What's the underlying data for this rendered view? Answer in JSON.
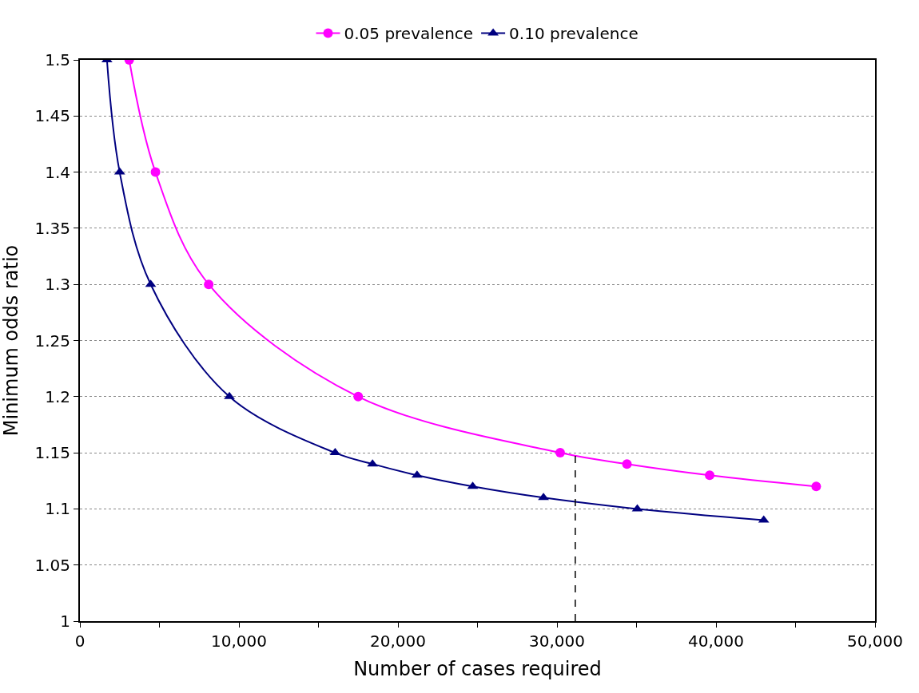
{
  "chart_data": {
    "type": "line",
    "xlabel": "Number of cases required",
    "ylabel": "Minimum odds ratio",
    "series": [
      {
        "name": "0.05 prevalence",
        "color": "#ff00ff",
        "marker": "circle",
        "x": [
          3100,
          4750,
          8100,
          17500,
          30200,
          34400,
          39600,
          46300
        ],
        "values": [
          1.5,
          1.4,
          1.3,
          1.2,
          1.15,
          1.14,
          1.13,
          1.12
        ]
      },
      {
        "name": "0.10 prevalence",
        "color": "#000080",
        "marker": "triangle",
        "x": [
          1700,
          2500,
          4450,
          9400,
          16050,
          18400,
          21200,
          24700,
          29150,
          35050,
          43000
        ],
        "values": [
          1.5,
          1.4,
          1.3,
          1.2,
          1.15,
          1.14,
          1.13,
          1.12,
          1.11,
          1.1,
          1.09
        ]
      },
      {
        "type": "line",
        "color": "#000000",
        "marker": "none",
        "line_style": "dashed",
        "x": [
          31150,
          31150
        ],
        "values": [
          1,
          1.15
        ]
      }
    ],
    "xlim": [
      0,
      50000
    ],
    "xticks": [
      0,
      {
        "value": 5000,
        "label": null
      },
      {
        "value": 10000,
        "label": "10,000"
      },
      {
        "value": 15000,
        "label": null
      },
      {
        "value": 20000,
        "label": "20,000"
      },
      {
        "value": 25000,
        "label": null
      },
      {
        "value": 30000,
        "label": "30,000"
      },
      {
        "value": 35000,
        "label": null
      },
      {
        "value": 40000,
        "label": "40,000"
      },
      {
        "value": 45000,
        "label": null
      },
      {
        "value": 50000,
        "label": "50,000"
      }
    ],
    "ylim": [
      1,
      1.5
    ],
    "yticks": [
      1,
      1.05,
      1.1,
      1.15,
      1.2,
      1.25,
      1.3,
      1.35,
      1.4,
      1.45,
      1.5
    ],
    "grid": "y",
    "legend": "top",
    "line_style": "solid"
  }
}
